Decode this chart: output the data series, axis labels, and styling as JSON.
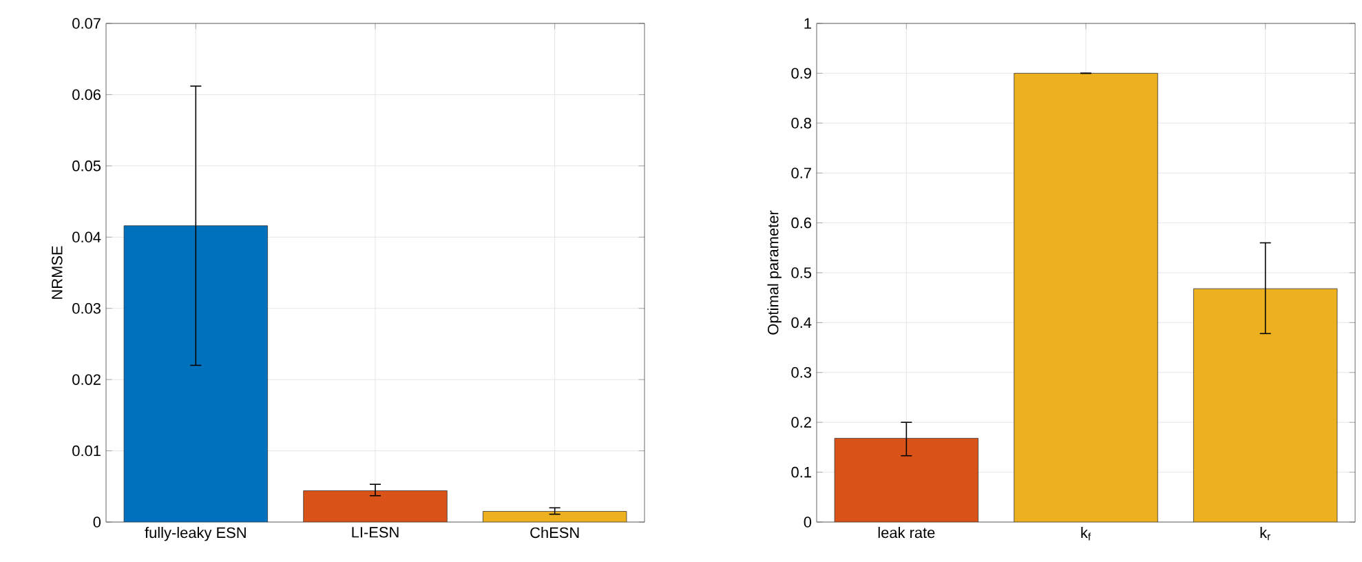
{
  "chart_data": [
    {
      "type": "bar",
      "ylabel": "NRMSE",
      "categories": [
        "fully-leaky ESN",
        "LI-ESN",
        "ChESN"
      ],
      "values": [
        0.0416,
        0.0044,
        0.0015
      ],
      "colors": [
        "#0072bd",
        "#d95319",
        "#edb120"
      ],
      "errors": [
        [
          0.022,
          0.0612
        ],
        [
          0.0037,
          0.0053
        ],
        [
          0.0011,
          0.002
        ]
      ],
      "ylim": [
        0,
        0.07
      ],
      "yticks": [
        0,
        0.01,
        0.02,
        0.03,
        0.04,
        0.05,
        0.06,
        0.07
      ],
      "grid": true
    },
    {
      "type": "bar",
      "ylabel": "Optimal parameter",
      "categories": [
        "leak rate",
        "k$_{f}$",
        "k$_{r}$"
      ],
      "values": [
        0.168,
        0.9,
        0.468
      ],
      "colors": [
        "#d95319",
        "#edb120",
        "#edb120"
      ],
      "errors": [
        [
          0.133,
          0.2
        ],
        0,
        [
          0.378,
          0.56
        ]
      ],
      "ylim": [
        0,
        1
      ],
      "yticks": [
        0,
        0.1,
        0.2,
        0.3,
        0.4,
        0.5,
        0.6,
        0.7,
        0.8,
        0.9,
        1
      ],
      "grid": true
    }
  ]
}
